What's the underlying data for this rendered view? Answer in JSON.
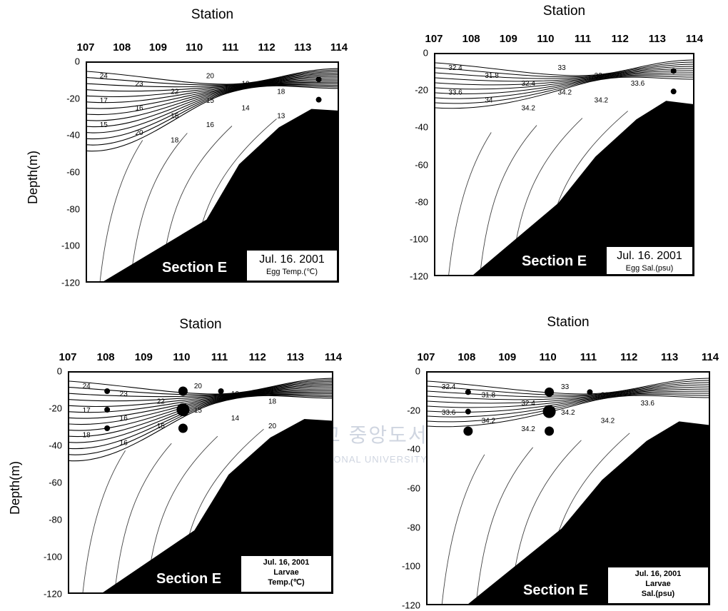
{
  "watermark": {
    "line1": "제주대학교 중앙도서관",
    "line2": "JEJU NATIONAL UNIVERSITY LIBRARY"
  },
  "chart_data": [
    {
      "type": "contour",
      "xlabel": "Station",
      "ylabel": "Depth(m)",
      "x_ticks": [
        "107",
        "108",
        "109",
        "110",
        "111",
        "112",
        "113",
        "114"
      ],
      "y_ticks": [
        "0",
        "-20",
        "-40",
        "-60",
        "-80",
        "-100",
        "-120"
      ],
      "xlim": [
        107,
        114
      ],
      "ylim": [
        -120,
        0
      ],
      "section_label": "Section E",
      "info_lines": [
        "Jul. 16. 2001",
        "Egg  Temp.(℃)"
      ],
      "contour_labels": [
        "24",
        "23",
        "22",
        "20",
        "19",
        "18",
        "17",
        "16",
        "15",
        "15",
        "14",
        "13",
        "15",
        "20",
        "18",
        "16"
      ],
      "samples": [
        {
          "x": 113.4,
          "y": -9,
          "size": "small"
        },
        {
          "x": 113.4,
          "y": -20,
          "size": "small"
        }
      ],
      "seabed": [
        [
          107,
          -125
        ],
        [
          110.3,
          -85
        ],
        [
          111.2,
          -55
        ],
        [
          112.3,
          -35
        ],
        [
          113.2,
          -25
        ],
        [
          114,
          -26
        ]
      ]
    },
    {
      "type": "contour",
      "xlabel": "Station",
      "ylabel": "",
      "x_ticks": [
        "107",
        "108",
        "109",
        "110",
        "111",
        "112",
        "113",
        "114"
      ],
      "y_ticks": [
        "0",
        "-20",
        "-40",
        "-60",
        "-80",
        "-100",
        "-120"
      ],
      "xlim": [
        107,
        114
      ],
      "ylim": [
        -120,
        0
      ],
      "section_label": "Section E",
      "info_lines": [
        "Jul. 16. 2001",
        "Egg  Sal.(psu)"
      ],
      "contour_labels": [
        "32.4",
        "31.8",
        "32.4",
        "33",
        "33",
        "33.6",
        "33.6",
        "34",
        "34.2",
        "34.2",
        "34.2"
      ],
      "samples": [
        {
          "x": 113.4,
          "y": -9,
          "size": "small"
        },
        {
          "x": 113.4,
          "y": -20,
          "size": "small"
        }
      ],
      "seabed": [
        [
          107.7,
          -125
        ],
        [
          110.3,
          -80
        ],
        [
          111.3,
          -55
        ],
        [
          112.4,
          -35
        ],
        [
          113.2,
          -25
        ],
        [
          114,
          -27
        ]
      ]
    },
    {
      "type": "contour",
      "xlabel": "Station",
      "ylabel": "Depth(m)",
      "x_ticks": [
        "107",
        "108",
        "109",
        "110",
        "111",
        "112",
        "113",
        "114"
      ],
      "y_ticks": [
        "0",
        "-20",
        "-40",
        "-60",
        "-80",
        "-100",
        "-120"
      ],
      "xlim": [
        107,
        114
      ],
      "ylim": [
        -120,
        0
      ],
      "section_label": "Section E",
      "info_lines": [
        "Jul. 16, 2001",
        "Larvae",
        "Temp.(℃)"
      ],
      "contour_labels": [
        "24",
        "23",
        "22",
        "20",
        "19",
        "18",
        "17",
        "16",
        "15",
        "15",
        "14",
        "20",
        "18",
        "16"
      ],
      "samples": [
        {
          "x": 108,
          "y": -10,
          "size": "small"
        },
        {
          "x": 108,
          "y": -20,
          "size": "small"
        },
        {
          "x": 108,
          "y": -30,
          "size": "small"
        },
        {
          "x": 110,
          "y": -10,
          "size": "medium"
        },
        {
          "x": 110,
          "y": -20,
          "size": "large"
        },
        {
          "x": 110,
          "y": -30,
          "size": "medium"
        },
        {
          "x": 111,
          "y": -10,
          "size": "small"
        }
      ],
      "seabed": [
        [
          107.5,
          -125
        ],
        [
          110.3,
          -85
        ],
        [
          111.2,
          -55
        ],
        [
          112.3,
          -35
        ],
        [
          113.2,
          -25
        ],
        [
          114,
          -26
        ]
      ]
    },
    {
      "type": "contour",
      "xlabel": "Station",
      "ylabel": "",
      "x_ticks": [
        "107",
        "108",
        "109",
        "110",
        "111",
        "112",
        "113",
        "114"
      ],
      "y_ticks": [
        "0",
        "-20",
        "-40",
        "-60",
        "-80",
        "-100",
        "-120"
      ],
      "xlim": [
        107,
        114
      ],
      "ylim": [
        -120,
        0
      ],
      "section_label": "Section E",
      "info_lines": [
        "Jul. 16, 2001",
        "Larvae",
        "Sal.(psu)"
      ],
      "contour_labels": [
        "32.4",
        "31.8",
        "32.4",
        "33",
        "33",
        "33.6",
        "33.6",
        "34.2",
        "34.2",
        "34.2",
        "34.2"
      ],
      "samples": [
        {
          "x": 108,
          "y": -10,
          "size": "small"
        },
        {
          "x": 108,
          "y": -20,
          "size": "small"
        },
        {
          "x": 108,
          "y": -30,
          "size": "medium"
        },
        {
          "x": 110,
          "y": -10,
          "size": "medium"
        },
        {
          "x": 110,
          "y": -20,
          "size": "large"
        },
        {
          "x": 110,
          "y": -30,
          "size": "medium"
        },
        {
          "x": 111,
          "y": -10,
          "size": "small"
        }
      ],
      "seabed": [
        [
          107.7,
          -125
        ],
        [
          110.3,
          -80
        ],
        [
          111.3,
          -55
        ],
        [
          112.4,
          -35
        ],
        [
          113.2,
          -25
        ],
        [
          114,
          -27
        ]
      ]
    }
  ]
}
